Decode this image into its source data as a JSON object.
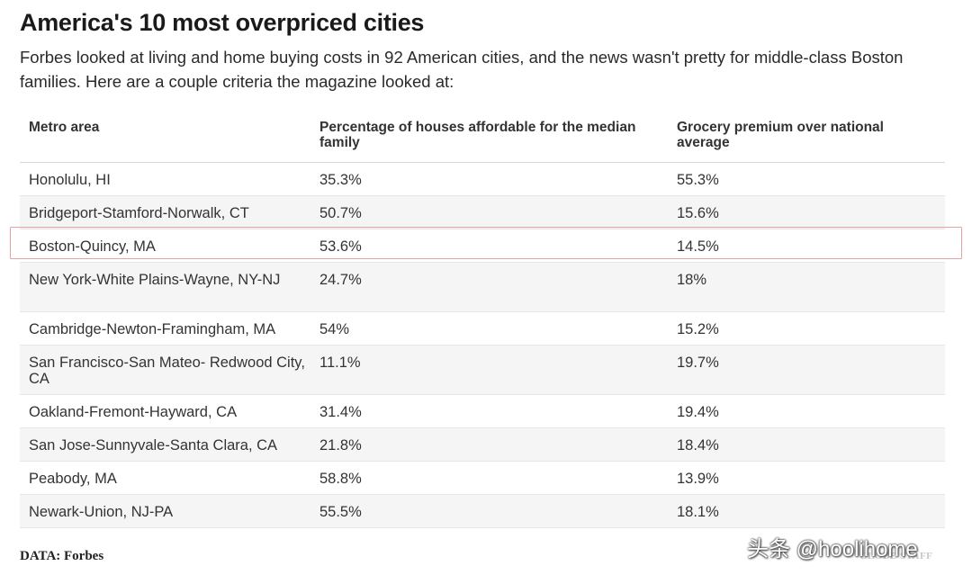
{
  "header": {
    "title": "America's 10 most overpriced cities",
    "subtitle": "Forbes looked at living and home buying costs in 92 American cities, and the news wasn't pretty for middle-class Boston families. Here are a couple criteria the magazine looked at:"
  },
  "table": {
    "columns": [
      "Metro area",
      "Percentage of houses affordable for the median family",
      "Grocery premium over national average"
    ],
    "rows": [
      {
        "metro": "Honolulu, HI",
        "affordable": "35.3%",
        "grocery": "55.3%"
      },
      {
        "metro": "Bridgeport-Stamford-Norwalk, CT",
        "affordable": "50.7%",
        "grocery": "15.6%"
      },
      {
        "metro": "Boston-Quincy, MA",
        "affordable": "53.6%",
        "grocery": "14.5%"
      },
      {
        "metro": "New York-White Plains-Wayne, NY-NJ",
        "affordable": "24.7%",
        "grocery": "18%"
      },
      {
        "metro": "Cambridge-Newton-Framingham, MA",
        "affordable": "54%",
        "grocery": "15.2%"
      },
      {
        "metro": "San Francisco-San Mateo- Redwood City, CA",
        "affordable": "11.1%",
        "grocery": "19.7%"
      },
      {
        "metro": "Oakland-Fremont-Hayward, CA",
        "affordable": "31.4%",
        "grocery": "19.4%"
      },
      {
        "metro": "San Jose-Sunnyvale-Santa Clara, CA",
        "affordable": "21.8%",
        "grocery": "18.4%"
      },
      {
        "metro": "Peabody, MA",
        "affordable": "58.8%",
        "grocery": "13.9%"
      },
      {
        "metro": "Newark-Union, NJ-PA",
        "affordable": "55.5%",
        "grocery": "18.1%"
      }
    ],
    "highlight_color": "#e7a3a3"
  },
  "footer": {
    "source": "DATA: Forbes",
    "credit": "GLOBE STAFF",
    "watermark": "头条 @hoolihome"
  }
}
